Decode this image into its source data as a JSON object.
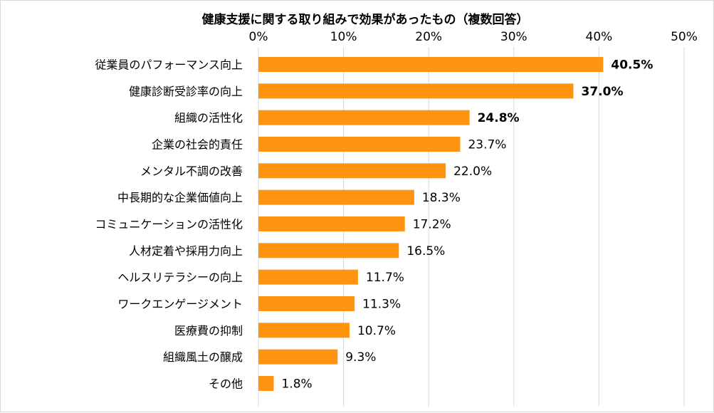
{
  "chart_data": {
    "type": "bar",
    "orientation": "horizontal",
    "title": "健康支援に関する取り組みで効果があったもの（複数回答）",
    "xlabel": "",
    "ylabel": "",
    "xlim": [
      0,
      50
    ],
    "axis_position": "top",
    "tick_values": [
      0,
      10,
      20,
      30,
      40,
      50
    ],
    "tick_labels": [
      "0%",
      "10%",
      "20%",
      "30%",
      "40%",
      "50%"
    ],
    "categories": [
      "従業員のパフォーマンス向上",
      "健康診断受診率の向上",
      "組織の活性化",
      "企業の社会的責任",
      "メンタル不調の改善",
      "中長期的な企業価値向上",
      "コミュニケーションの活性化",
      "人材定着や採用力向上",
      "ヘルスリテラシーの向上",
      "ワークエンゲージメント",
      "医療費の抑制",
      "組織風土の醸成",
      "その他"
    ],
    "values": [
      40.5,
      37.0,
      24.8,
      23.7,
      22.0,
      18.3,
      17.2,
      16.5,
      11.7,
      11.3,
      10.7,
      9.3,
      1.8
    ],
    "value_labels": [
      "40.5%",
      "37.0%",
      "24.8%",
      "23.7%",
      "22.0%",
      "18.3%",
      "17.2%",
      "16.5%",
      "11.7%",
      "11.3%",
      "10.7%",
      "9.3%",
      "1.8%"
    ],
    "bold_labels": [
      true,
      true,
      true,
      false,
      false,
      false,
      false,
      false,
      false,
      false,
      false,
      false,
      false
    ],
    "bar_color": "#FF9410",
    "grid": true,
    "grid_color": "#d9d9d9"
  }
}
